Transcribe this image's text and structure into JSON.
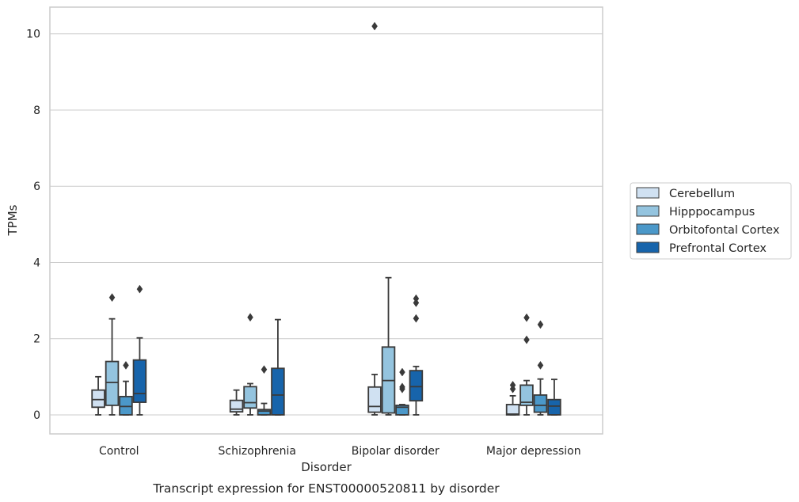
{
  "caption": "Transcript expression for ENST00000520811 by disorder",
  "colors": {
    "Cerebellum": "#d0e1f2",
    "Hipppocampus": "#94c4df",
    "Orbitofontal Cortex": "#4b98c9",
    "Prefrontal Cortex": "#1764ab",
    "box_edge": "#3a3a3a",
    "grid": "#cccccc",
    "frame": "#cccccc"
  },
  "chart_data": {
    "type": "box",
    "xlabel": "Disorder",
    "ylabel": "TPMs",
    "ylim": [
      -0.5,
      10.7
    ],
    "yticks": [
      0,
      2,
      4,
      6,
      8,
      10
    ],
    "grid": "horizontal",
    "legend_position": "right",
    "categories": [
      "Control",
      "Schizophrenia",
      "Bipolar disorder",
      "Major depression"
    ],
    "series": [
      {
        "name": "Cerebellum",
        "boxes": [
          {
            "whisker_low": 0.0,
            "q1": 0.2,
            "median": 0.4,
            "q3": 0.65,
            "whisker_high": 1.0,
            "outliers": []
          },
          {
            "whisker_low": 0.0,
            "q1": 0.08,
            "median": 0.15,
            "q3": 0.38,
            "whisker_high": 0.65,
            "outliers": []
          },
          {
            "whisker_low": 0.0,
            "q1": 0.07,
            "median": 0.22,
            "q3": 0.73,
            "whisker_high": 1.06,
            "outliers": [
              10.2
            ]
          },
          {
            "whisker_low": 0.0,
            "q1": 0.0,
            "median": 0.02,
            "q3": 0.27,
            "whisker_high": 0.5,
            "outliers": [
              0.68,
              0.78
            ]
          }
        ]
      },
      {
        "name": "Hipppocampus",
        "boxes": [
          {
            "whisker_low": 0.0,
            "q1": 0.25,
            "median": 0.85,
            "q3": 1.4,
            "whisker_high": 2.52,
            "outliers": [
              3.08
            ]
          },
          {
            "whisker_low": 0.0,
            "q1": 0.18,
            "median": 0.32,
            "q3": 0.74,
            "whisker_high": 0.82,
            "outliers": [
              2.56
            ]
          },
          {
            "whisker_low": 0.0,
            "q1": 0.05,
            "median": 0.9,
            "q3": 1.78,
            "whisker_high": 3.6,
            "outliers": []
          },
          {
            "whisker_low": 0.0,
            "q1": 0.25,
            "median": 0.33,
            "q3": 0.78,
            "whisker_high": 0.9,
            "outliers": [
              1.97,
              2.55
            ]
          }
        ]
      },
      {
        "name": "Orbitofontal Cortex",
        "boxes": [
          {
            "whisker_low": 0.0,
            "q1": 0.0,
            "median": 0.22,
            "q3": 0.48,
            "whisker_high": 0.88,
            "outliers": [
              1.3
            ]
          },
          {
            "whisker_low": 0.0,
            "q1": 0.0,
            "median": 0.1,
            "q3": 0.14,
            "whisker_high": 0.3,
            "outliers": [
              1.19
            ]
          },
          {
            "whisker_low": 0.0,
            "q1": 0.0,
            "median": 0.2,
            "q3": 0.25,
            "whisker_high": 0.27,
            "outliers": [
              0.68,
              0.73,
              1.12
            ]
          },
          {
            "whisker_low": 0.0,
            "q1": 0.07,
            "median": 0.25,
            "q3": 0.52,
            "whisker_high": 0.94,
            "outliers": [
              1.3,
              2.37
            ]
          }
        ]
      },
      {
        "name": "Prefrontal Cortex",
        "boxes": [
          {
            "whisker_low": 0.0,
            "q1": 0.33,
            "median": 0.56,
            "q3": 1.44,
            "whisker_high": 2.02,
            "outliers": [
              3.3
            ]
          },
          {
            "whisker_low": 0.0,
            "q1": 0.0,
            "median": 0.52,
            "q3": 1.22,
            "whisker_high": 2.5,
            "outliers": []
          },
          {
            "whisker_low": 0.0,
            "q1": 0.37,
            "median": 0.74,
            "q3": 1.16,
            "whisker_high": 1.27,
            "outliers": [
              2.53,
              2.94,
              3.05
            ]
          },
          {
            "whisker_low": 0.0,
            "q1": 0.0,
            "median": 0.23,
            "q3": 0.4,
            "whisker_high": 0.93,
            "outliers": []
          }
        ]
      }
    ]
  }
}
